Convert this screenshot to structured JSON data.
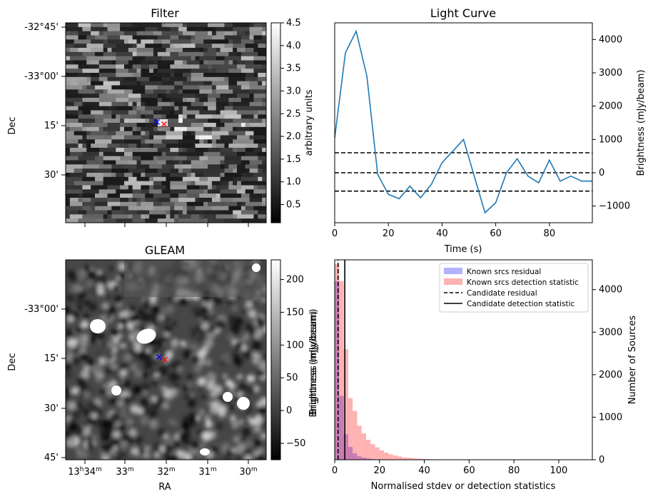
{
  "panels": {
    "filter": {
      "title": "Filter",
      "ylabel": "Dec",
      "y_ticks": [
        "-32°45'",
        "-33°00'",
        "15'",
        "30'"
      ],
      "colorbar": {
        "label": "arbitrary units",
        "ticks": [
          "0.5",
          "1.0",
          "1.5",
          "2.0",
          "2.5",
          "3.0",
          "3.5",
          "4.0",
          "4.5"
        ],
        "cmap": "gray"
      },
      "markers": [
        {
          "symbol": "x",
          "color": "#0000ff"
        },
        {
          "symbol": "x",
          "color": "#ff0000"
        }
      ]
    },
    "gleam": {
      "title": "GLEAM",
      "xlabel": "RA",
      "ylabel": "Dec",
      "y_ticks": [
        "-33°00'",
        "15'",
        "30'",
        "45'"
      ],
      "x_ticks": [
        {
          "main": "13",
          "sup1": "h",
          "mid": "34",
          "sup2": "m"
        },
        {
          "main": "33",
          "sup1": "",
          "mid": "",
          "sup2": "m"
        },
        {
          "main": "32",
          "sup1": "",
          "mid": "",
          "sup2": "m"
        },
        {
          "main": "31",
          "sup1": "",
          "mid": "",
          "sup2": "m"
        },
        {
          "main": "30",
          "sup1": "",
          "mid": "",
          "sup2": "m"
        }
      ],
      "colorbar": {
        "label": "Brightness (mJy/beam)",
        "ticks": [
          "200",
          "150",
          "100",
          "50",
          "0",
          "−50"
        ],
        "cmap": "gray"
      },
      "markers": [
        {
          "symbol": "x",
          "color": "#0000ff"
        },
        {
          "symbol": "x",
          "color": "#ff0000"
        }
      ]
    }
  },
  "chart_data": [
    {
      "type": "line",
      "title": "Light Curve",
      "xlabel": "Time (s)",
      "ylabel": "Brightness (mJy/beam)",
      "xlim": [
        0,
        96
      ],
      "ylim": [
        -1500,
        4500
      ],
      "x_ticks": [
        0,
        20,
        40,
        60,
        80
      ],
      "y_ticks": [
        -1000,
        0,
        1000,
        2000,
        3000,
        4000
      ],
      "y_tick_labels": [
        "−1000",
        "0",
        "1000",
        "2000",
        "3000",
        "4000"
      ],
      "x": [
        0,
        4,
        8,
        12,
        16,
        20,
        24,
        28,
        32,
        36,
        40,
        44,
        48,
        52,
        56,
        60,
        64,
        68,
        72,
        76,
        80,
        84,
        88,
        92,
        96
      ],
      "series": [
        {
          "values": [
            1050,
            3600,
            4250,
            2900,
            -50,
            -650,
            -780,
            -400,
            -750,
            -350,
            300,
            650,
            1000,
            -100,
            -1200,
            -900,
            0,
            420,
            -100,
            -300,
            380,
            -250,
            -100,
            -250,
            -250
          ],
          "color": "#1f77b4"
        }
      ],
      "hlines": [
        {
          "y": 600,
          "style": "dashed",
          "color": "#000000"
        },
        {
          "y": 0,
          "style": "dashed",
          "color": "#000000"
        },
        {
          "y": -550,
          "style": "dashed",
          "color": "#000000"
        }
      ],
      "grid": false
    },
    {
      "type": "histogram",
      "xlabel": "Normalised stdev or detection statistics",
      "ylabel": "Number of Sources",
      "left_ylabel": "Brightness (mJy/beam)",
      "xlim": [
        0,
        115
      ],
      "ylim": [
        0,
        4700
      ],
      "x_ticks": [
        0,
        20,
        40,
        60,
        80,
        100
      ],
      "y_ticks": [
        0,
        1000,
        2000,
        3000,
        4000
      ],
      "bin_width": 2,
      "series": [
        {
          "name": "Known srcs residual",
          "color": "#0000ff",
          "alpha": 0.3,
          "bin_starts": [
            0,
            2,
            4,
            6,
            8,
            10,
            12,
            14,
            16
          ],
          "values": [
            4200,
            1500,
            600,
            300,
            150,
            80,
            50,
            30,
            15
          ]
        },
        {
          "name": "Known srcs detection statistic",
          "color": "#ff0000",
          "alpha": 0.3,
          "bin_starts": [
            0,
            2,
            4,
            6,
            8,
            10,
            12,
            14,
            16,
            18,
            20,
            22,
            24,
            26,
            28,
            30,
            32,
            34,
            36,
            38,
            40,
            42,
            44,
            46,
            48,
            50,
            52,
            54,
            56,
            58,
            60,
            70,
            80,
            84,
            106
          ],
          "values": [
            4600,
            4200,
            2600,
            1450,
            1150,
            800,
            620,
            470,
            370,
            290,
            220,
            170,
            130,
            100,
            75,
            55,
            45,
            35,
            28,
            22,
            16,
            12,
            10,
            8,
            6,
            5,
            4,
            3,
            3,
            2,
            2,
            2,
            2,
            3,
            2
          ]
        }
      ],
      "vlines": [
        {
          "name": "Candidate residual",
          "x": 1.5,
          "style": "dashed",
          "color": "#000000"
        },
        {
          "name": "Candidate detection statistic",
          "x": 4.5,
          "style": "solid",
          "color": "#000000"
        }
      ],
      "legend": "top-right"
    }
  ]
}
